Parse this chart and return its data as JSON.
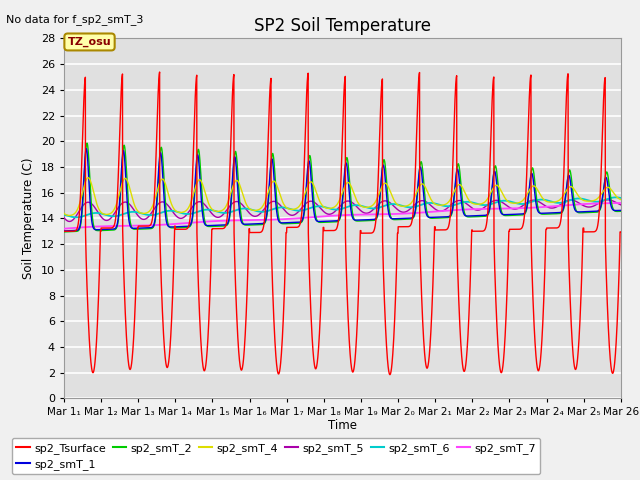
{
  "title": "SP2 Soil Temperature",
  "no_data_text": "No data for f_sp2_smT_3",
  "ylabel": "Soil Temperature (C)",
  "xlabel": "Time",
  "tz_label": "TZ_osu",
  "ylim": [
    0,
    28
  ],
  "yticks": [
    0,
    2,
    4,
    6,
    8,
    10,
    12,
    14,
    16,
    18,
    20,
    22,
    24,
    26,
    28
  ],
  "series_colors": {
    "sp2_Tsurface": "#FF0000",
    "sp2_smT_1": "#0000DD",
    "sp2_smT_2": "#00CC00",
    "sp2_smT_4": "#DDDD00",
    "sp2_smT_5": "#AA00AA",
    "sp2_smT_6": "#00CCCC",
    "sp2_smT_7": "#FF44FF"
  },
  "background_color": "#E0E0E0",
  "grid_color": "#FFFFFF",
  "fig_bg": "#F0F0F0"
}
